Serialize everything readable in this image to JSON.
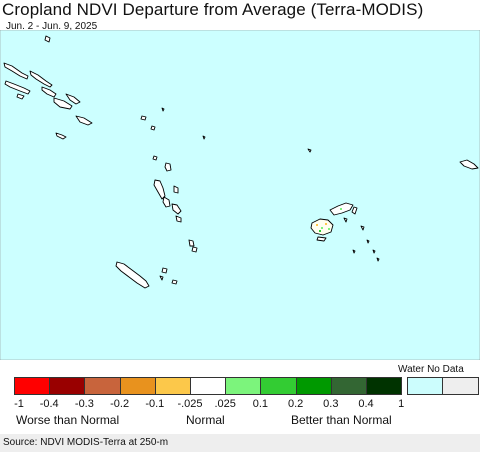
{
  "title": "Cropland NDVI Departure from Average (Terra-MODIS)",
  "date_range": "Jun. 2 - Jun. 9, 2025",
  "legend": {
    "swatches": [
      {
        "color": "#ff0000"
      },
      {
        "color": "#990000"
      },
      {
        "color": "#c8643c"
      },
      {
        "color": "#e8921e"
      },
      {
        "color": "#fcc84a"
      },
      {
        "color": "#ffffff"
      },
      {
        "color": "#7cf47c"
      },
      {
        "color": "#33cc33"
      },
      {
        "color": "#009900"
      },
      {
        "color": "#336633"
      },
      {
        "color": "#003300"
      },
      {
        "color": "#ccfdfd"
      },
      {
        "color": "#eeeeee"
      }
    ],
    "ticks": [
      "-1",
      "-0.4",
      "-0.3",
      "-0.2",
      "-0.1",
      "-.025",
      ".025",
      "0.1",
      "0.2",
      "0.3",
      "0.4",
      "1"
    ],
    "worse_label": "Worse than Normal",
    "normal_label": "Normal",
    "better_label": "Better than Normal",
    "nodata_labels": "Water No Data"
  },
  "map": {
    "ocean_color": "#ccffff",
    "land_color": "#ffffff"
  },
  "source": "Source: NDVI MODIS-Terra at 250-m"
}
